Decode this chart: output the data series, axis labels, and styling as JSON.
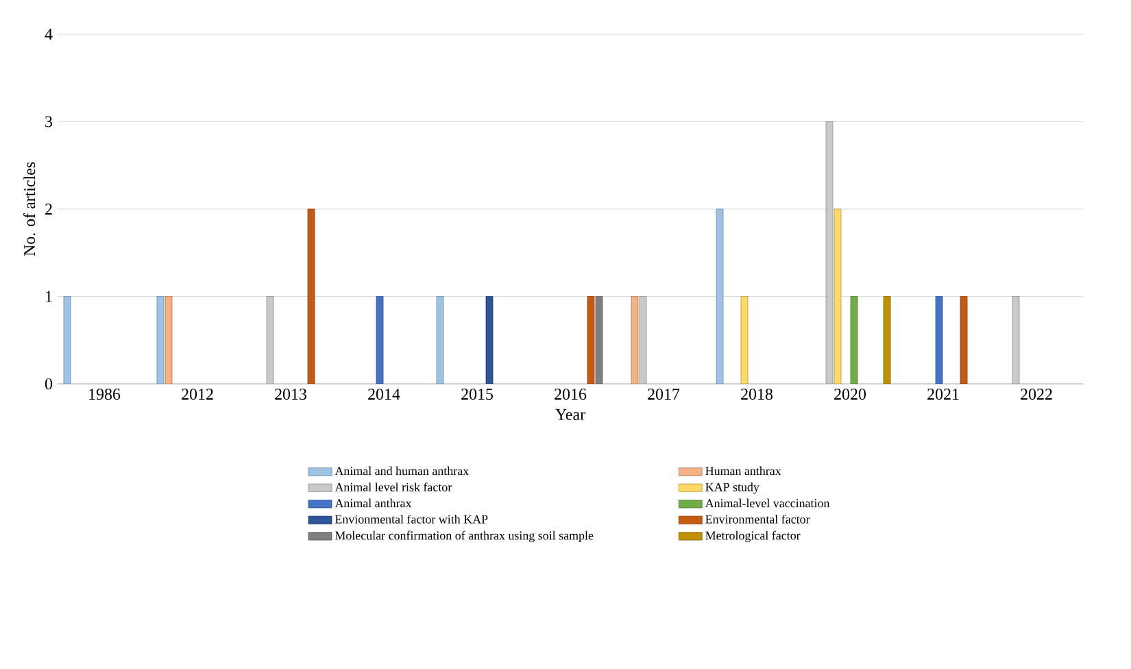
{
  "chart_data": {
    "type": "bar",
    "xlabel": "Year",
    "ylabel": "No. of articles",
    "categories": [
      "1986",
      "2012",
      "2013",
      "2014",
      "2015",
      "2016",
      "2017",
      "2018",
      "2020",
      "2021",
      "2022"
    ],
    "series": [
      {
        "name": "Animal and human anthrax",
        "color": "#9dc3e6",
        "values": [
          1,
          1,
          null,
          null,
          1,
          null,
          null,
          2,
          null,
          null,
          null
        ]
      },
      {
        "name": "Human anthrax",
        "color": "#f4b183",
        "values": [
          null,
          1,
          null,
          null,
          null,
          null,
          1,
          null,
          null,
          null,
          null
        ]
      },
      {
        "name": "Animal level risk factor",
        "color": "#c9c9c9",
        "values": [
          null,
          null,
          1,
          null,
          null,
          null,
          1,
          null,
          3,
          null,
          1
        ]
      },
      {
        "name": "KAP study",
        "color": "#ffd966",
        "values": [
          null,
          null,
          null,
          null,
          null,
          null,
          null,
          1,
          2,
          null,
          null
        ]
      },
      {
        "name": "Animal anthrax",
        "color": "#4472c4",
        "values": [
          null,
          null,
          null,
          1,
          null,
          null,
          null,
          null,
          null,
          1,
          null
        ]
      },
      {
        "name": "Animal-level vaccination",
        "color": "#70ad47",
        "values": [
          null,
          null,
          null,
          null,
          null,
          null,
          null,
          null,
          1,
          null,
          null
        ]
      },
      {
        "name": "Envionmental factor with KAP",
        "color": "#2e5597",
        "values": [
          null,
          null,
          null,
          null,
          1,
          null,
          null,
          null,
          null,
          null,
          null
        ]
      },
      {
        "name": "Environmental factor",
        "color": "#c55a11",
        "values": [
          null,
          null,
          2,
          null,
          null,
          1,
          null,
          null,
          null,
          1,
          null
        ]
      },
      {
        "name": "Molecular confirmation of anthrax using soil sample",
        "color": "#7f7f7f",
        "values": [
          null,
          null,
          null,
          null,
          null,
          1,
          null,
          null,
          null,
          null,
          null
        ]
      },
      {
        "name": "Metrological factor",
        "color": "#bf9000",
        "values": [
          null,
          null,
          null,
          null,
          null,
          null,
          null,
          null,
          1,
          null,
          null
        ]
      }
    ],
    "ylim": [
      0,
      4
    ],
    "yticks": [
      0,
      1,
      2,
      3,
      4
    ],
    "grid": "y",
    "legend": "bottom"
  }
}
